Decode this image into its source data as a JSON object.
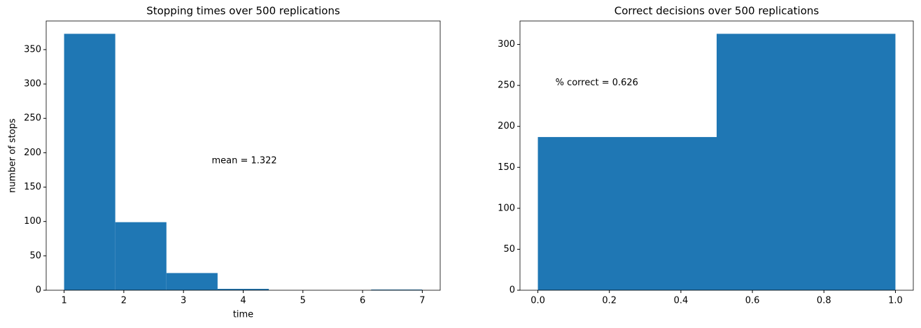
{
  "chart_data": [
    {
      "type": "histogram",
      "title": "Stopping times over 500 replications",
      "bins": [
        1,
        1.857,
        2.714,
        3.571,
        4.429,
        5.286,
        6.143,
        7
      ],
      "values": [
        373,
        99,
        25,
        2,
        0,
        0,
        1
      ],
      "color": "#1f77b4",
      "xlim": [
        0.7,
        7.3
      ],
      "ylim": [
        0,
        391.65
      ],
      "xticks": [
        1,
        2,
        3,
        4,
        5,
        6,
        7
      ],
      "yticks": [
        0,
        50,
        100,
        150,
        200,
        250,
        300,
        350
      ],
      "xlabel": "time",
      "ylabel": "number of stops",
      "annotation": "mean = 1.322"
    },
    {
      "type": "histogram",
      "title": "Correct decisions over 500 replications",
      "bins": [
        0,
        0.5,
        1
      ],
      "values": [
        187,
        313
      ],
      "color": "#1f77b4",
      "xlim": [
        -0.05,
        1.05
      ],
      "ylim": [
        0,
        328.65
      ],
      "xticks": [
        {
          "value": 0,
          "label": "0.0"
        },
        {
          "value": 0.2,
          "label": "0.2"
        },
        {
          "value": 0.4,
          "label": "0.4"
        },
        {
          "value": 0.6,
          "label": "0.6"
        },
        {
          "value": 0.8,
          "label": "0.8"
        },
        {
          "value": 1,
          "label": "1.0"
        }
      ],
      "yticks": [
        0,
        50,
        100,
        150,
        200,
        250,
        300
      ],
      "annotation": "% correct = 0.626"
    }
  ]
}
